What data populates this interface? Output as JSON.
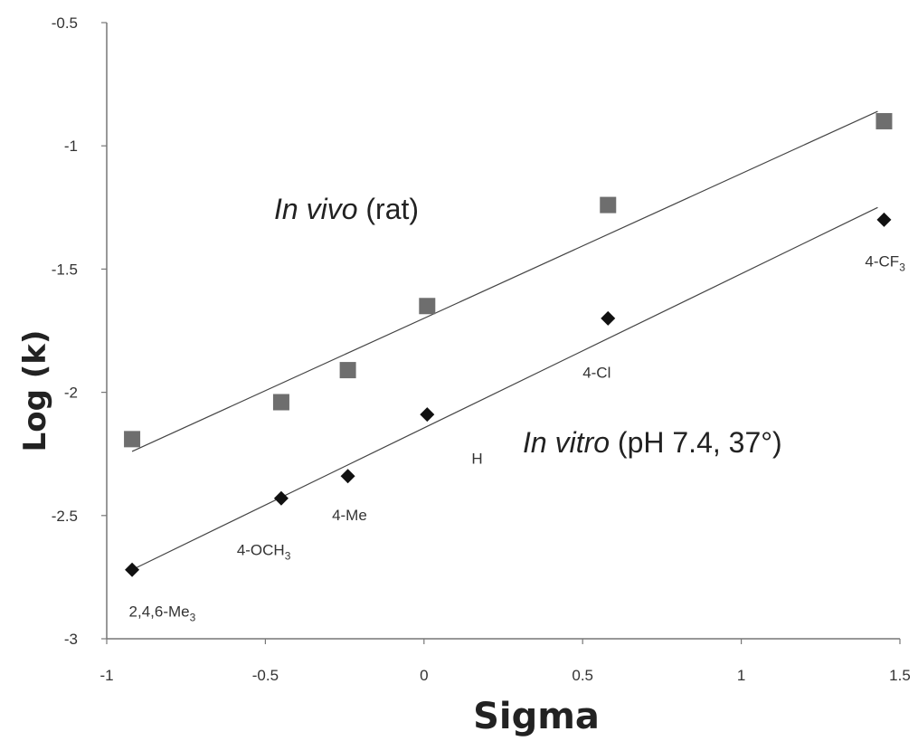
{
  "chart_data": {
    "type": "scatter",
    "title": "",
    "xlabel": "Sigma",
    "ylabel": "Log (k)",
    "xlim": [
      -1,
      1.5
    ],
    "ylim": [
      -3,
      -0.5
    ],
    "x_ticks": [
      "-1",
      "-0.5",
      "0",
      "0.5",
      "1",
      "1.5"
    ],
    "y_ticks": [
      "-0.5",
      "-1",
      "-1.5",
      "-2",
      "-2.5",
      "-3"
    ],
    "grid": false,
    "legend": "none",
    "series": [
      {
        "label_parts": [
          "In vivo",
          " (rat)"
        ],
        "marker": "square",
        "color": "#6e6e6e",
        "points": [
          {
            "x": -0.92,
            "y": -2.19
          },
          {
            "x": -0.45,
            "y": -2.04
          },
          {
            "x": -0.24,
            "y": -1.91
          },
          {
            "x": 0.01,
            "y": -1.65
          },
          {
            "x": 0.58,
            "y": -1.24
          },
          {
            "x": 1.45,
            "y": -0.9
          }
        ],
        "trendline": {
          "x": [
            -0.92,
            1.43
          ],
          "y": [
            -2.24,
            -0.86
          ]
        }
      },
      {
        "label_parts": [
          "In vitro",
          " (pH 7.4, 37°)"
        ],
        "marker": "diamond",
        "color": "#111111",
        "points": [
          {
            "x": -0.92,
            "y": -2.72
          },
          {
            "x": -0.45,
            "y": -2.43
          },
          {
            "x": -0.24,
            "y": -2.34
          },
          {
            "x": 0.01,
            "y": -2.09
          },
          {
            "x": 0.58,
            "y": -1.7
          },
          {
            "x": 1.45,
            "y": -1.3
          }
        ],
        "trendline": {
          "x": [
            -0.92,
            1.43
          ],
          "y": [
            -2.72,
            -1.25
          ]
        }
      }
    ],
    "annotations": [
      {
        "text": "2,4,6-Me",
        "sub": "3",
        "x": -0.93,
        "y": -2.91
      },
      {
        "text": "4-OCH",
        "sub": "3",
        "x": -0.59,
        "y": -2.66
      },
      {
        "text": "4-Me",
        "sub": "",
        "x": -0.29,
        "y": -2.52
      },
      {
        "text": "H",
        "sub": "",
        "x": 0.15,
        "y": -2.29
      },
      {
        "text": "4-Cl",
        "sub": "",
        "x": 0.5,
        "y": -1.94
      },
      {
        "text": "4-CF",
        "sub": "3",
        "x": 1.39,
        "y": -1.49
      }
    ]
  }
}
